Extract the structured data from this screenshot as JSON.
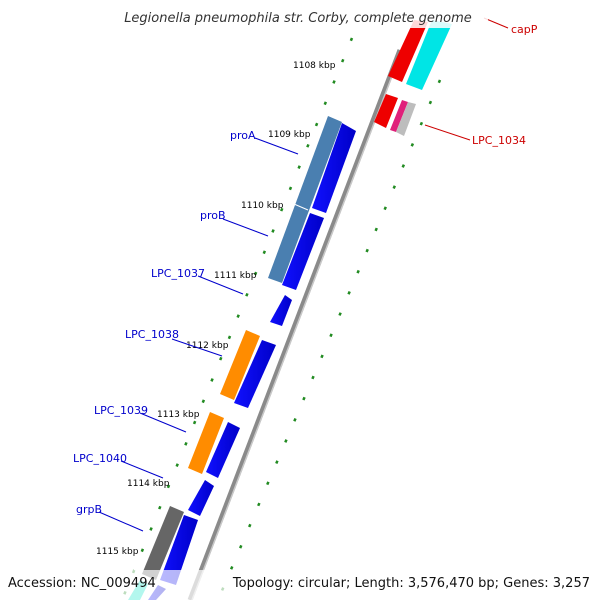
{
  "title": "Legionella pneumophila str. Corby, complete genome",
  "footer": {
    "accession": "Accession: NC_009494",
    "summary": "Topology: circular; Length: 3,576,470 bp; Genes: 3,257"
  },
  "ruler_labels": [
    "1108 kbp",
    "1109 kbp",
    "1110 kbp",
    "1111 kbp",
    "1112 kbp",
    "1113 kbp",
    "1114 kbp",
    "1115 kbp"
  ],
  "gene_labels": {
    "forward": [
      "proA",
      "proB",
      "LPC_1037",
      "LPC_1038",
      "LPC_1039",
      "LPC_1040",
      "grpB"
    ],
    "reverse": [
      "capP",
      "LPC_1034"
    ]
  },
  "colors": {
    "cds_blue": "#0000ee",
    "cds_red": "#ee0000",
    "steelblue": "#4a7fb0",
    "orange": "#ff8c00",
    "cyan": "#00e5e5",
    "grey": "#666666",
    "magenta": "#e0207a",
    "ruler_green": "#228b22",
    "label_blue": "#0000cc",
    "label_red": "#cc0000"
  }
}
